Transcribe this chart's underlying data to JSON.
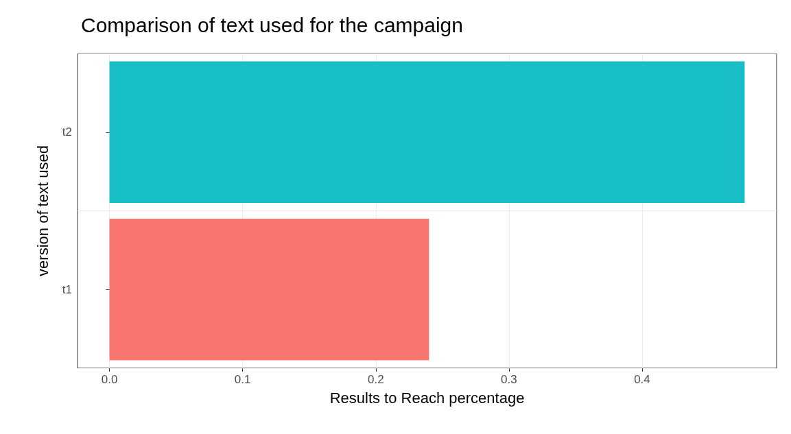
{
  "chart_data": {
    "type": "bar",
    "orientation": "horizontal",
    "title": "Comparison of text used for the campaign",
    "xlabel": "Results to Reach percentage",
    "ylabel": "version of text used",
    "categories": [
      "t2",
      "t1"
    ],
    "values": [
      0.477,
      0.24
    ],
    "colors": [
      "#17bec6",
      "#f8766d"
    ],
    "xlim": [
      -0.024,
      0.501
    ],
    "xticks": [
      {
        "value": 0,
        "label": "0.0"
      },
      0.1,
      0.2,
      0.3,
      0.4
    ],
    "grid": true
  }
}
